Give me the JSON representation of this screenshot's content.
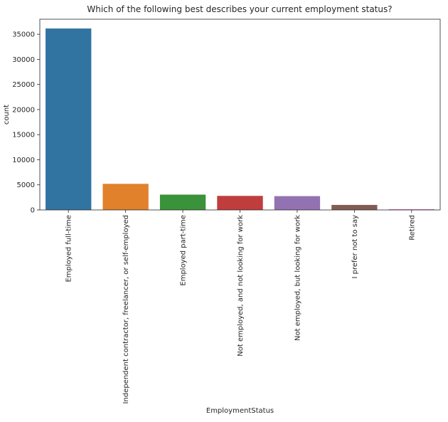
{
  "chart_data": {
    "type": "bar",
    "title": "Which of the following best describes your current employment status?",
    "xlabel": "EmploymentStatus",
    "ylabel": "count",
    "ylim": [
      0,
      38000
    ],
    "yticks": [
      0,
      5000,
      10000,
      15000,
      20000,
      25000,
      30000,
      35000
    ],
    "grid": false,
    "categories": [
      "Employed full-time",
      "Independent contractor, freelancer, or self-employed",
      "Employed part-time",
      "Not employed, and not looking for work",
      "Not employed, but looking for work",
      "I prefer not to say",
      "Retired"
    ],
    "values": [
      36150,
      5200,
      3050,
      2800,
      2750,
      1000,
      160
    ],
    "colors": [
      "#3274a1",
      "#e1812c",
      "#3a923a",
      "#c03d3e",
      "#9372b2",
      "#845b53",
      "#d684bd"
    ]
  }
}
